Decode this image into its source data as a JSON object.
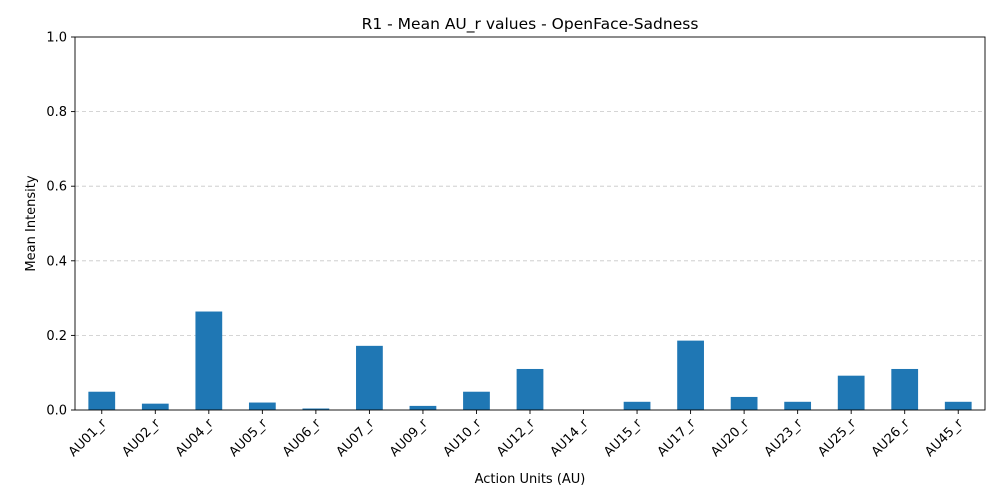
{
  "chart_data": {
    "type": "bar",
    "title": "R1 - Mean AU_r values - OpenFace-Sadness",
    "xlabel": "Action Units (AU)",
    "ylabel": "Mean Intensity",
    "ylim": [
      0,
      1.0
    ],
    "yticks": [
      "0.0",
      "0.2",
      "0.4",
      "0.6",
      "0.8",
      "1.0"
    ],
    "grid": "y-dashed",
    "bar_color": "#1f77b4",
    "categories": [
      "AU01_r",
      "AU02_r",
      "AU04_r",
      "AU05_r",
      "AU06_r",
      "AU07_r",
      "AU09_r",
      "AU10_r",
      "AU12_r",
      "AU14_r",
      "AU15_r",
      "AU17_r",
      "AU20_r",
      "AU23_r",
      "AU25_r",
      "AU26_r",
      "AU45_r"
    ],
    "values": [
      0.049,
      0.017,
      0.264,
      0.02,
      0.004,
      0.172,
      0.011,
      0.049,
      0.11,
      0.0,
      0.022,
      0.186,
      0.035,
      0.022,
      0.092,
      0.11,
      0.022
    ]
  }
}
